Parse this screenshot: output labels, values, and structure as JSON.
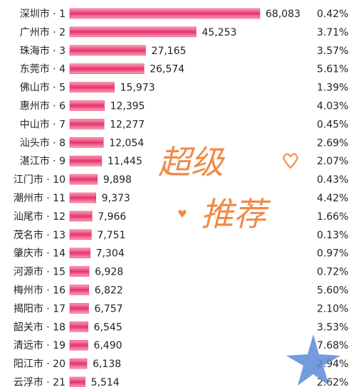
{
  "chart_data": {
    "type": "hbar",
    "categories": [
      "深圳市 · 1",
      "广州市 · 2",
      "珠海市 · 3",
      "东莞市 · 4",
      "佛山市 · 5",
      "惠州市 · 6",
      "中山市 · 7",
      "汕头市 · 8",
      "湛江市 · 9",
      "江门市 · 10",
      "潮州市 · 11",
      "汕尾市 · 12",
      "茂名市 · 13",
      "肇庆市 · 14",
      "河源市 · 15",
      "梅州市 · 16",
      "揭阳市 · 17",
      "韶关市 · 18",
      "清远市 · 19",
      "阳江市 · 20",
      "云浮市 · 21"
    ],
    "values": [
      68083,
      45253,
      27165,
      26574,
      15973,
      12395,
      12277,
      12054,
      11445,
      9898,
      9373,
      7966,
      7751,
      7304,
      6928,
      6822,
      6757,
      6545,
      6490,
      6138,
      5514
    ],
    "value_labels": [
      "68,083",
      "45,253",
      "27,165",
      "26,574",
      "15,973",
      "12,395",
      "12,277",
      "12,054",
      "11,445",
      "9,898",
      "9,373",
      "7,966",
      "7,751",
      "7,304",
      "6,928",
      "6,822",
      "6,757",
      "6,545",
      "6,490",
      "6,138",
      "5,514"
    ],
    "color": "#e8336a",
    "growth": {
      "values": [
        0.42,
        3.71,
        3.57,
        5.61,
        1.39,
        4.03,
        0.45,
        2.69,
        2.07,
        0.43,
        4.42,
        1.66,
        0.13,
        0.97,
        0.72,
        5.6,
        2.1,
        3.53,
        7.68,
        2.94,
        2.62
      ],
      "value_labels": [
        "0.42%",
        "3.71%",
        "3.57%",
        "5.61%",
        "1.39%",
        "4.03%",
        "0.45%",
        "2.69%",
        "2.07%",
        "0.43%",
        "4.42%",
        "1.66%",
        "0.13%",
        "0.97%",
        "0.72%",
        "5.60%",
        "2.10%",
        "3.53%",
        "7.68%",
        "2.94%",
        "2.62%"
      ],
      "colors": [
        "#1a9aa6",
        "#1a9aa6",
        "#1a9aa6",
        "#7a2a6a",
        "#1a9aa6",
        "#1a9aa6",
        "#1a9aa6",
        "#1a9aa6",
        "#1a9aa6",
        "#1a9aa6",
        "#1a9aa6",
        "#7a2a6a",
        "#1a9aa6",
        "#7a2a6a",
        "#1a9aa6",
        "#1a9aa6",
        "#7a2a6a",
        "#1a9aa6",
        "#1a9aa6",
        "#1a9aa6",
        "#1a9aa6"
      ]
    },
    "annotations": [
      "超级",
      "推荐"
    ]
  }
}
